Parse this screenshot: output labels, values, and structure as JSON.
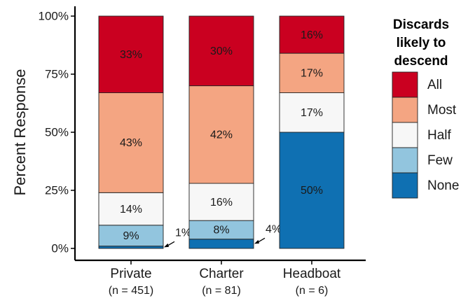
{
  "chart_data": {
    "type": "bar",
    "stacked": true,
    "ylabel": "Percent Response",
    "ylim": [
      0,
      100
    ],
    "y_ticks": [
      "0%",
      "25%",
      "50%",
      "75%",
      "100%"
    ],
    "categories": [
      {
        "name": "Private",
        "n": "(n = 451)"
      },
      {
        "name": "Charter",
        "n": "(n = 81)"
      },
      {
        "name": "Headboat",
        "n": "(n = 6)"
      }
    ],
    "series": [
      {
        "name": "None",
        "color": "#0f70b2",
        "values": [
          1,
          4,
          50
        ],
        "labels": [
          "1%",
          "4%",
          "50%"
        ]
      },
      {
        "name": "Few",
        "color": "#92c5de",
        "values": [
          9,
          8,
          0
        ],
        "labels": [
          "9%",
          "8%",
          ""
        ]
      },
      {
        "name": "Half",
        "color": "#f7f7f7",
        "values": [
          14,
          16,
          17
        ],
        "labels": [
          "14%",
          "16%",
          "17%"
        ]
      },
      {
        "name": "Most",
        "color": "#f4a582",
        "values": [
          43,
          42,
          17
        ],
        "labels": [
          "43%",
          "42%",
          "17%"
        ]
      },
      {
        "name": "All",
        "color": "#ca0020",
        "values": [
          33,
          30,
          16
        ],
        "labels": [
          "33%",
          "30%",
          "16%"
        ]
      }
    ],
    "legend": {
      "title_lines": [
        "Discards",
        "likely to",
        "descend"
      ],
      "order": [
        "All",
        "Most",
        "Half",
        "Few",
        "None"
      ],
      "position": "right"
    },
    "grid": false
  }
}
